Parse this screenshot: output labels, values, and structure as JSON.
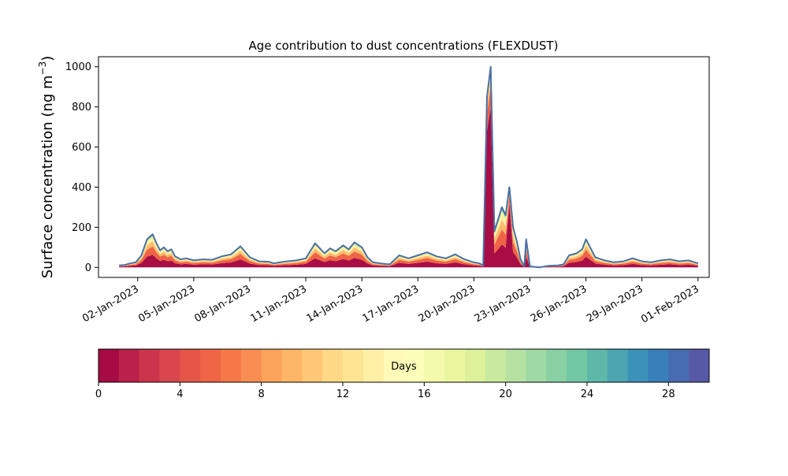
{
  "chart_data": {
    "type": "area",
    "title": "Age contribution to dust concentrations (FLEXDUST)",
    "ylabel": "Surface concentration (ng m",
    "ylabel_superscript": "−3",
    "ylabel_close": ")",
    "ylim": [
      -50,
      1050
    ],
    "yticks": [
      0,
      200,
      400,
      600,
      800,
      1000
    ],
    "xlim_days": [
      -1.1,
      31.6
    ],
    "xticks": [
      {
        "day": 1,
        "label": "02-Jan-2023"
      },
      {
        "day": 4,
        "label": "05-Jan-2023"
      },
      {
        "day": 7,
        "label": "08-Jan-2023"
      },
      {
        "day": 10,
        "label": "11-Jan-2023"
      },
      {
        "day": 13,
        "label": "14-Jan-2023"
      },
      {
        "day": 16,
        "label": "17-Jan-2023"
      },
      {
        "day": 19,
        "label": "20-Jan-2023"
      },
      {
        "day": 22,
        "label": "23-Jan-2023"
      },
      {
        "day": 25,
        "label": "26-Jan-2023"
      },
      {
        "day": 28,
        "label": "29-Jan-2023"
      },
      {
        "day": 31,
        "label": "01-Feb-2023"
      }
    ],
    "total_series": {
      "day": [
        0,
        0.3,
        0.6,
        0.9,
        1.2,
        1.5,
        1.8,
        2.0,
        2.2,
        2.4,
        2.6,
        2.8,
        3.0,
        3.3,
        3.6,
        4.0,
        4.5,
        5.0,
        5.5,
        6.0,
        6.5,
        7.0,
        7.5,
        8.0,
        8.3,
        8.6,
        9.0,
        9.5,
        10.0,
        10.5,
        11.0,
        11.3,
        11.6,
        12.0,
        12.3,
        12.6,
        13.0,
        13.3,
        13.6,
        14.0,
        14.5,
        15.0,
        15.5,
        16.0,
        16.5,
        17.0,
        17.5,
        18.0,
        18.5,
        19.0,
        19.3,
        19.5,
        19.7,
        19.9,
        20.1,
        20.3,
        20.5,
        20.7,
        20.9,
        21.1,
        21.3,
        21.5,
        21.7,
        21.8,
        22.0,
        22.5,
        23.0,
        23.5,
        23.8,
        24.1,
        24.5,
        24.8,
        25.0,
        25.5,
        26.0,
        26.5,
        27.0,
        27.5,
        28.0,
        28.5,
        29.0,
        29.5,
        30.0,
        30.5,
        31.0
      ],
      "value": [
        10,
        12,
        20,
        25,
        60,
        140,
        165,
        120,
        85,
        100,
        80,
        90,
        55,
        40,
        45,
        35,
        40,
        38,
        55,
        65,
        105,
        50,
        30,
        28,
        20,
        25,
        30,
        35,
        45,
        120,
        70,
        95,
        80,
        110,
        90,
        125,
        100,
        50,
        25,
        20,
        15,
        60,
        45,
        60,
        75,
        55,
        45,
        65,
        40,
        25,
        20,
        10,
        850,
        1000,
        180,
        240,
        300,
        260,
        400,
        200,
        130,
        40,
        5,
        140,
        5,
        0,
        8,
        10,
        15,
        60,
        70,
        90,
        140,
        50,
        35,
        25,
        30,
        45,
        30,
        25,
        35,
        40,
        30,
        35,
        20
      ]
    },
    "colorbar": {
      "label": "Days",
      "range": [
        0,
        30
      ],
      "n_bins": 30,
      "ticks": [
        0,
        4,
        8,
        12,
        16,
        20,
        24,
        28
      ]
    },
    "colormap": "Spectral",
    "outline_color": "#4a6fa5"
  }
}
